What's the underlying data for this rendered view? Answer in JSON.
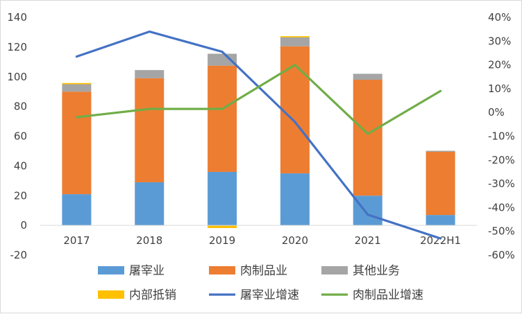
{
  "chart_data": {
    "type": "bar",
    "categories": [
      "2017",
      "2018",
      "2019",
      "2020",
      "2021",
      "2022H1"
    ],
    "series": [
      {
        "name": "屠宰业",
        "kind": "stacked-bar",
        "axis": "left",
        "color": "#5b9bd5",
        "values": [
          21,
          29,
          36,
          35,
          20,
          7
        ]
      },
      {
        "name": "肉制品业",
        "kind": "stacked-bar",
        "axis": "left",
        "color": "#ed7d31",
        "values": [
          69,
          70,
          71.5,
          85.5,
          78,
          42.5
        ]
      },
      {
        "name": "其他业务",
        "kind": "stacked-bar",
        "axis": "left",
        "color": "#a5a5a5",
        "values": [
          5,
          5.5,
          8,
          6,
          4,
          0.7
        ]
      },
      {
        "name": "内部抵销",
        "kind": "stacked-bar",
        "axis": "left",
        "color": "#ffc000",
        "values": [
          0.8,
          0,
          -1.8,
          0.8,
          0,
          0
        ]
      },
      {
        "name": "屠宰业增速",
        "kind": "line",
        "axis": "right",
        "color": "#4472c4",
        "values": [
          23.5,
          34,
          25.5,
          -4,
          -43,
          -53
        ]
      },
      {
        "name": "肉制品业增速",
        "kind": "line",
        "axis": "right",
        "color": "#70ad47",
        "values": [
          -2,
          1.5,
          1.5,
          20,
          -9,
          9
        ]
      }
    ],
    "y_left": {
      "min": -20,
      "max": 140,
      "step": 20,
      "ticks": [
        "-20",
        "0",
        "20",
        "40",
        "60",
        "80",
        "100",
        "120",
        "140"
      ]
    },
    "y_right": {
      "min": -60,
      "max": 40,
      "step": 10,
      "unit": "%",
      "ticks": [
        "-60%",
        "-50%",
        "-40%",
        "-30%",
        "-20%",
        "-10%",
        "0%",
        "10%",
        "20%",
        "30%",
        "40%"
      ]
    },
    "grid": false,
    "legend_position": "bottom",
    "title": "",
    "xlabel": "",
    "ylabel": ""
  }
}
